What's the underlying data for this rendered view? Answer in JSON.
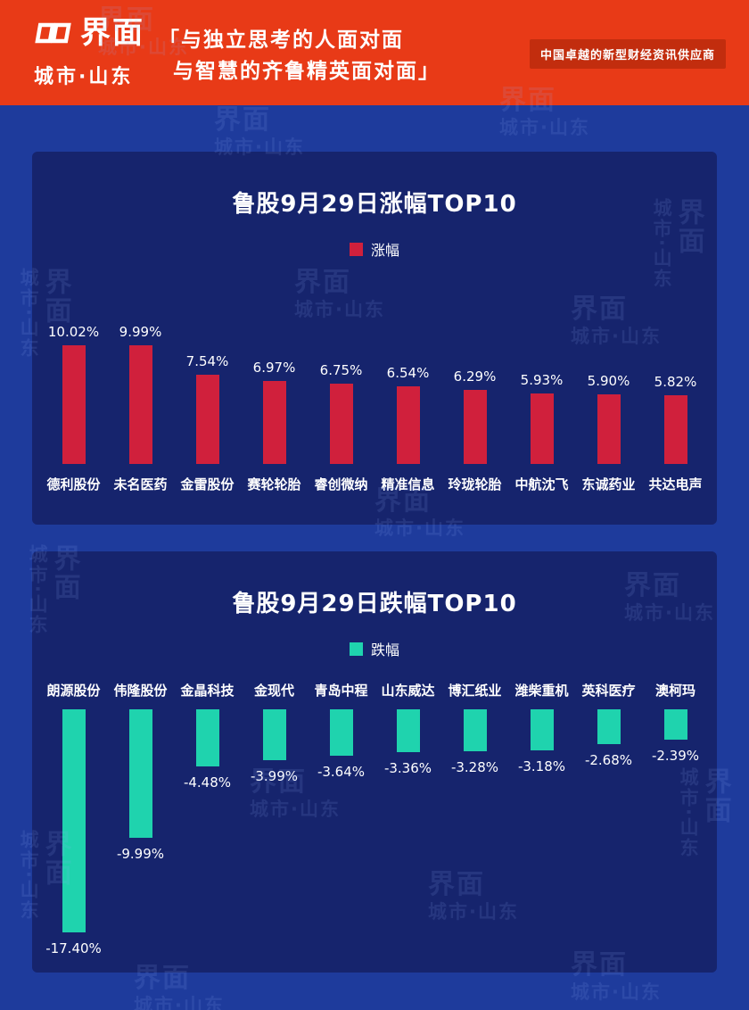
{
  "header": {
    "logo_text": "界面",
    "logo_sub": "城市·山东",
    "quote_line1": "「与独立思考的人面对面",
    "quote_line2": "与智慧的齐鲁精英面对面」",
    "tagline": "中国卓越的新型财经资讯供应商",
    "colors": {
      "bg": "#e83a17",
      "ribbon": "#c22d0e"
    }
  },
  "watermark": {
    "logo": "界面",
    "sub": "城市·山东"
  },
  "chart_data": [
    {
      "type": "bar",
      "title": "鲁股9月29日涨幅TOP10",
      "legend": "涨幅",
      "bar_color": "#d0203c",
      "direction": "up",
      "categories": [
        "德利股份",
        "未名医药",
        "金雷股份",
        "赛轮轮胎",
        "睿创微纳",
        "精准信息",
        "玲珑轮胎",
        "中航沈飞",
        "东诚药业",
        "共达电声"
      ],
      "values": [
        10.02,
        9.99,
        7.54,
        6.97,
        6.75,
        6.54,
        6.29,
        5.93,
        5.9,
        5.82
      ],
      "labels": [
        "10.02%",
        "9.99%",
        "7.54%",
        "6.97%",
        "6.75%",
        "6.54%",
        "6.29%",
        "5.93%",
        "5.90%",
        "5.82%"
      ],
      "xlabel": "",
      "ylabel": "",
      "ylim": [
        0,
        10.02
      ],
      "grid": false,
      "legend_position": "top-center"
    },
    {
      "type": "bar",
      "title": "鲁股9月29日跌幅TOP10",
      "legend": "跌幅",
      "bar_color": "#1fd3ae",
      "direction": "down",
      "categories": [
        "朗源股份",
        "伟隆股份",
        "金晶科技",
        "金现代",
        "青岛中程",
        "山东威达",
        "博汇纸业",
        "潍柴重机",
        "英科医疗",
        "澳柯玛"
      ],
      "values": [
        -17.4,
        -9.99,
        -4.48,
        -3.99,
        -3.64,
        -3.36,
        -3.28,
        -3.18,
        -2.68,
        -2.39
      ],
      "labels": [
        "-17.40%",
        "-9.99%",
        "-4.48%",
        "-3.99%",
        "-3.64%",
        "-3.36%",
        "-3.28%",
        "-3.18%",
        "-2.68%",
        "-2.39%"
      ],
      "xlabel": "",
      "ylabel": "",
      "ylim": [
        -17.4,
        0
      ],
      "grid": false,
      "legend_position": "top-center"
    }
  ]
}
